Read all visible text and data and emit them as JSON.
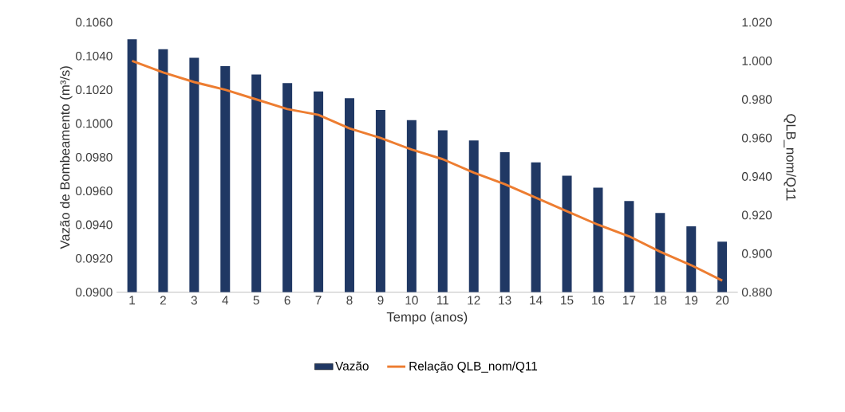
{
  "chart_data": {
    "type": "bar",
    "categories": [
      "1",
      "2",
      "3",
      "4",
      "5",
      "6",
      "7",
      "8",
      "9",
      "10",
      "11",
      "12",
      "13",
      "14",
      "15",
      "16",
      "17",
      "18",
      "19",
      "20"
    ],
    "series": [
      {
        "name": "Vazão",
        "color": "#203864",
        "values": [
          0.105,
          0.1044,
          0.1039,
          0.1034,
          0.1029,
          0.1024,
          0.1019,
          0.1015,
          0.1008,
          0.1002,
          0.0996,
          0.099,
          0.0983,
          0.0977,
          0.0969,
          0.0962,
          0.0954,
          0.0947,
          0.0939,
          0.093
        ]
      },
      {
        "name": "Relação QLB_nom/Q11",
        "type": "line",
        "axis": "y2",
        "color": "#ed7d31",
        "values": [
          1.0,
          0.994,
          0.989,
          0.985,
          0.98,
          0.975,
          0.972,
          0.965,
          0.96,
          0.954,
          0.949,
          0.942,
          0.936,
          0.929,
          0.922,
          0.915,
          0.909,
          0.901,
          0.894,
          0.886
        ]
      }
    ],
    "xlabel": "Tempo (anos)",
    "ylabel": "Vazão de Bombeamento (m³/s)",
    "y2label": "QLB_nom/Q11",
    "ylim": [
      0.09,
      0.106
    ],
    "yticks": [
      {
        "value": 0.09,
        "label": "0.0900"
      },
      {
        "value": 0.092,
        "label": "0.0920"
      },
      {
        "value": 0.094,
        "label": "0.0940"
      },
      {
        "value": 0.096,
        "label": "0.0960"
      },
      {
        "value": 0.098,
        "label": "0.0980"
      },
      {
        "value": 0.1,
        "label": "0.1000"
      },
      {
        "value": 0.102,
        "label": "0.1020"
      },
      {
        "value": 0.104,
        "label": "0.1040"
      },
      {
        "value": 0.106,
        "label": "0.1060"
      }
    ],
    "y2lim": [
      0.88,
      1.02
    ],
    "y2ticks": [
      {
        "value": 0.88,
        "label": "0.880"
      },
      {
        "value": 0.9,
        "label": "0.900"
      },
      {
        "value": 0.92,
        "label": "0.920"
      },
      {
        "value": 0.94,
        "label": "0.940"
      },
      {
        "value": 0.96,
        "label": "0.960"
      },
      {
        "value": 0.98,
        "label": "0.980"
      },
      {
        "value": 1.0,
        "label": "1.000"
      },
      {
        "value": 1.02,
        "label": "1.020"
      }
    ],
    "legend": "bottom"
  }
}
